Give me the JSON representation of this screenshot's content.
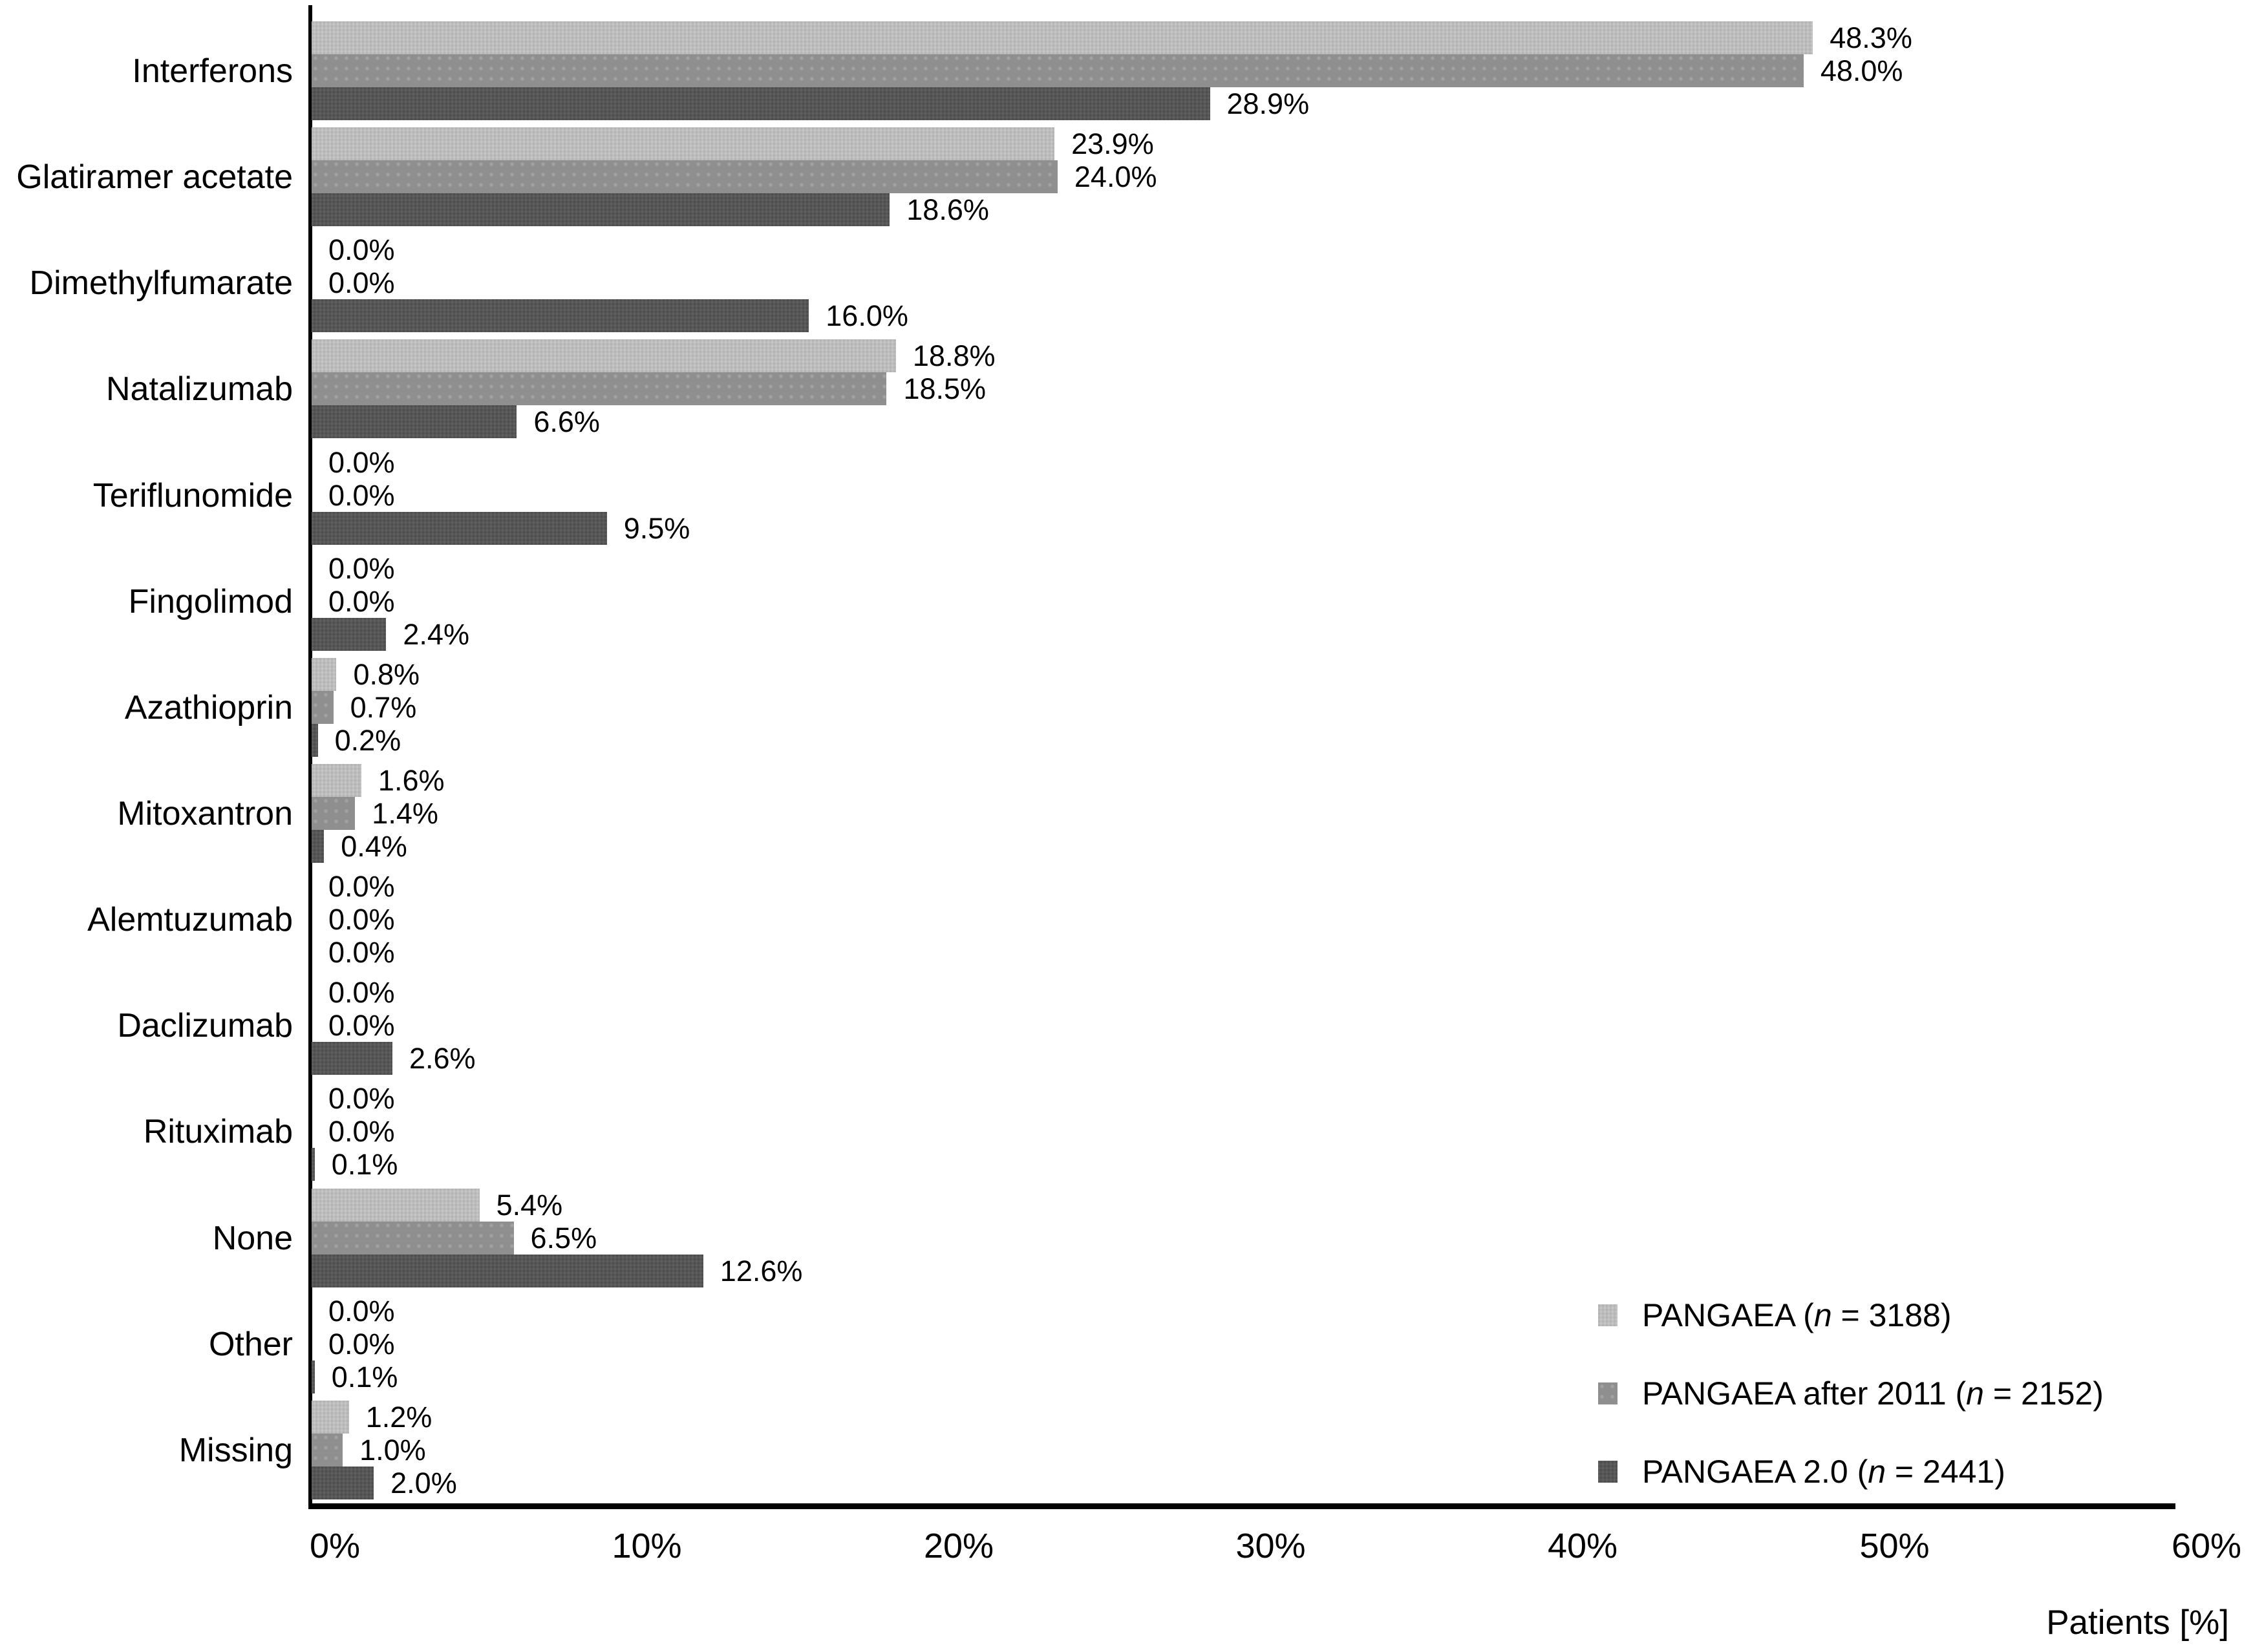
{
  "chart_data": {
    "type": "bar",
    "orientation": "horizontal",
    "title": "",
    "xlabel": "Patients [%]",
    "ylabel": "",
    "xlim": [
      0,
      60
    ],
    "x_ticks": [
      "0%",
      "10%",
      "20%",
      "30%",
      "40%",
      "50%",
      "60%"
    ],
    "grid": false,
    "legend_position": "bottom-right",
    "value_suffix": "%",
    "value_decimals": 1,
    "categories": [
      "Interferons",
      "Glatiramer acetate",
      "Dimethylfumarate",
      "Natalizumab",
      "Teriflunomide",
      "Fingolimod",
      "Azathioprin",
      "Mitoxantron",
      "Alemtuzumab",
      "Daclizumab",
      "Rituximab",
      "None",
      "Other",
      "Missing"
    ],
    "series": [
      {
        "name": "PANGAEA",
        "n": 3188,
        "color": "#c6c6c6",
        "values": [
          48.3,
          23.9,
          0.0,
          18.8,
          0.0,
          0.0,
          0.8,
          1.6,
          0.0,
          0.0,
          0.0,
          5.4,
          0.0,
          1.2
        ]
      },
      {
        "name": "PANGAEA after 2011",
        "n": 2152,
        "color": "#8f8f8f",
        "values": [
          48.0,
          24.0,
          0.0,
          18.5,
          0.0,
          0.0,
          0.7,
          1.4,
          0.0,
          0.0,
          0.0,
          6.5,
          0.0,
          1.0
        ]
      },
      {
        "name": "PANGAEA 2.0",
        "n": 2441,
        "color": "#565656",
        "values": [
          28.9,
          18.6,
          16.0,
          6.6,
          9.5,
          2.4,
          0.2,
          0.4,
          0.0,
          2.6,
          0.1,
          12.6,
          0.1,
          2.0
        ]
      }
    ]
  },
  "legend": {
    "items": [
      {
        "before": "PANGAEA (",
        "n_symbol": "n",
        "after": " = 3188)"
      },
      {
        "before": "PANGAEA after 2011 (",
        "n_symbol": "n",
        "after": " = 2152)"
      },
      {
        "before": "PANGAEA 2.0 (",
        "n_symbol": "n",
        "after": " = 2441)"
      }
    ]
  }
}
